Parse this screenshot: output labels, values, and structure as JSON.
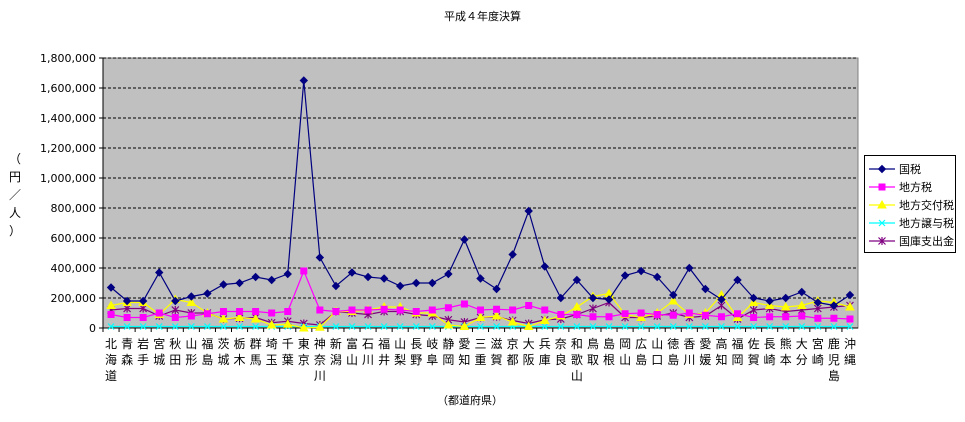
{
  "chart_data": {
    "type": "line",
    "title": "平成４年度決算",
    "xlabel": "（都道府県）",
    "ylabel": "（円／人）",
    "ylim": [
      0,
      1800000
    ],
    "ytick_labels": [
      "0",
      "200,000",
      "400,000",
      "600,000",
      "800,000",
      "1,000,000",
      "1,200,000",
      "1,400,000",
      "1,600,000",
      "1,800,000"
    ],
    "yticks": [
      0,
      200000,
      400000,
      600000,
      800000,
      1000000,
      1200000,
      1400000,
      1600000,
      1800000
    ],
    "grid": true,
    "legend_position": "right",
    "plot_background": "#c0c0c0",
    "categories": [
      "北海道",
      "青森",
      "岩手",
      "宮城",
      "秋田",
      "山形",
      "福島",
      "茨城",
      "栃木",
      "群馬",
      "埼玉",
      "千葉",
      "東京",
      "神奈川",
      "新潟",
      "富山",
      "石川",
      "福井",
      "山梨",
      "長野",
      "岐阜",
      "静岡",
      "愛知",
      "三重",
      "滋賀",
      "京都",
      "大阪",
      "兵庫",
      "奈良",
      "和歌山",
      "鳥取",
      "島根",
      "岡山",
      "広島",
      "山口",
      "徳島",
      "香川",
      "愛媛",
      "高知",
      "福岡",
      "佐賀",
      "長崎",
      "熊本",
      "大分",
      "宮崎",
      "鹿児島",
      "沖縄"
    ],
    "series": [
      {
        "name": "国税",
        "color": "#000080",
        "marker": "diamond",
        "values": [
          270000,
          180000,
          180000,
          370000,
          180000,
          210000,
          230000,
          290000,
          300000,
          340000,
          320000,
          360000,
          1650000,
          470000,
          280000,
          370000,
          340000,
          330000,
          280000,
          300000,
          300000,
          360000,
          590000,
          330000,
          260000,
          490000,
          780000,
          410000,
          200000,
          320000,
          200000,
          190000,
          350000,
          380000,
          340000,
          220000,
          400000,
          260000,
          190000,
          320000,
          200000,
          180000,
          200000,
          240000,
          170000,
          150000,
          220000
        ]
      },
      {
        "name": "地方税",
        "color": "#ff00ff",
        "marker": "square",
        "values": [
          90000,
          70000,
          70000,
          100000,
          70000,
          80000,
          95000,
          110000,
          110000,
          110000,
          100000,
          110000,
          380000,
          120000,
          110000,
          120000,
          120000,
          125000,
          120000,
          110000,
          120000,
          135000,
          160000,
          120000,
          125000,
          120000,
          150000,
          120000,
          90000,
          90000,
          75000,
          75000,
          95000,
          100000,
          90000,
          85000,
          100000,
          85000,
          75000,
          95000,
          70000,
          75000,
          75000,
          80000,
          65000,
          65000,
          60000
        ]
      },
      {
        "name": "地方交付税",
        "color": "#ffff00",
        "marker": "triangle",
        "values": [
          150000,
          170000,
          170000,
          90000,
          190000,
          170000,
          100000,
          60000,
          70000,
          60000,
          20000,
          25000,
          0,
          5000,
          110000,
          110000,
          120000,
          140000,
          140000,
          100000,
          100000,
          20000,
          10000,
          70000,
          80000,
          40000,
          10000,
          50000,
          80000,
          140000,
          210000,
          230000,
          90000,
          70000,
          100000,
          180000,
          90000,
          100000,
          220000,
          70000,
          170000,
          150000,
          140000,
          150000,
          180000,
          170000,
          140000
        ]
      },
      {
        "name": "地方譲与税",
        "color": "#00ffff",
        "marker": "x",
        "values": [
          10000,
          10000,
          10000,
          10000,
          10000,
          10000,
          10000,
          10000,
          10000,
          10000,
          10000,
          10000,
          10000,
          10000,
          10000,
          10000,
          10000,
          10000,
          10000,
          10000,
          10000,
          10000,
          10000,
          10000,
          10000,
          10000,
          10000,
          10000,
          10000,
          10000,
          10000,
          10000,
          10000,
          10000,
          10000,
          10000,
          10000,
          10000,
          10000,
          10000,
          10000,
          10000,
          10000,
          10000,
          10000,
          10000,
          10000
        ]
      },
      {
        "name": "国庫支出金",
        "color": "#800080",
        "marker": "star",
        "values": [
          120000,
          130000,
          130000,
          80000,
          120000,
          100000,
          100000,
          60000,
          65000,
          70000,
          35000,
          45000,
          30000,
          20000,
          110000,
          100000,
          90000,
          110000,
          110000,
          90000,
          80000,
          55000,
          40000,
          70000,
          75000,
          50000,
          30000,
          55000,
          60000,
          90000,
          130000,
          170000,
          70000,
          70000,
          80000,
          100000,
          70000,
          80000,
          150000,
          60000,
          120000,
          130000,
          110000,
          120000,
          130000,
          140000,
          150000
        ]
      }
    ]
  }
}
